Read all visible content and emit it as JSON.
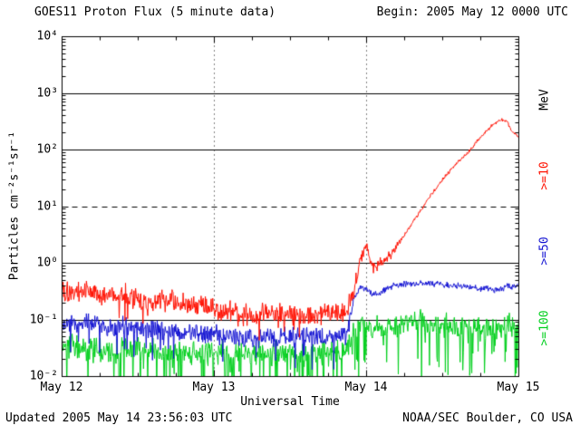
{
  "chart_data": {
    "type": "line",
    "title": "GOES11 Proton Flux (5 minute data)",
    "begin_label": "Begin: 2005 May 12 0000 UTC",
    "updated_label": "Updated 2005 May 14 23:56:03 UTC",
    "source_label": "NOAA/SEC Boulder, CO USA",
    "xlabel": "Universal Time",
    "ylabel": "Particles cm⁻²s⁻¹sr⁻¹",
    "right_axis_label": "MeV",
    "x_axis": {
      "range_hours": [
        0,
        72
      ],
      "tick_hours": [
        0,
        24,
        48,
        72
      ],
      "tick_labels": [
        "May 12",
        "May 13",
        "May 14",
        "May 15"
      ],
      "minor_tick_step_hours": 6
    },
    "y_axis": {
      "scale": "log",
      "ylim": [
        0.01,
        10000
      ],
      "tick_exponents": [
        -2,
        -1,
        0,
        1,
        2,
        3,
        4
      ],
      "tick_labels": [
        "10⁻²",
        "10⁻¹",
        "10⁰",
        "10¹",
        "10²",
        "10³",
        "10⁴"
      ]
    },
    "grid": {
      "solid_horizontal_exponents": [
        -1,
        0,
        2,
        3
      ],
      "dashed_horizontal_exponents": [
        1
      ],
      "dotted_vertical_hours": [
        24,
        48
      ]
    },
    "series": [
      {
        "name": "ge10",
        "label": ">=10",
        "units": "MeV",
        "color": "#ff1100",
        "points_time_hours_vs_flux": [
          [
            0,
            0.35
          ],
          [
            2,
            0.3
          ],
          [
            4,
            0.32
          ],
          [
            6,
            0.28
          ],
          [
            8,
            0.26
          ],
          [
            10,
            0.28
          ],
          [
            12,
            0.24
          ],
          [
            14,
            0.22
          ],
          [
            16,
            0.24
          ],
          [
            18,
            0.2
          ],
          [
            20,
            0.18
          ],
          [
            22,
            0.18
          ],
          [
            24,
            0.16
          ],
          [
            26,
            0.14
          ],
          [
            28,
            0.13
          ],
          [
            30,
            0.12
          ],
          [
            32,
            0.13
          ],
          [
            34,
            0.12
          ],
          [
            36,
            0.13
          ],
          [
            38,
            0.12
          ],
          [
            40,
            0.12
          ],
          [
            42,
            0.13
          ],
          [
            44,
            0.13
          ],
          [
            45,
            0.15
          ],
          [
            46,
            0.3
          ],
          [
            47,
            1.2
          ],
          [
            48,
            2.0
          ],
          [
            49,
            0.8
          ],
          [
            50,
            1.0
          ],
          [
            52,
            1.5
          ],
          [
            54,
            3.2
          ],
          [
            56,
            7.0
          ],
          [
            58,
            15
          ],
          [
            60,
            30
          ],
          [
            62,
            55
          ],
          [
            64,
            90
          ],
          [
            66,
            170
          ],
          [
            68,
            290
          ],
          [
            69,
            340
          ],
          [
            70,
            330
          ],
          [
            71,
            210
          ],
          [
            72,
            170
          ]
        ]
      },
      {
        "name": "ge50",
        "label": ">=50",
        "units": "MeV",
        "color": "#1414d2",
        "points_time_hours_vs_flux": [
          [
            0,
            0.09
          ],
          [
            2,
            0.08
          ],
          [
            4,
            0.09
          ],
          [
            6,
            0.08
          ],
          [
            8,
            0.07
          ],
          [
            10,
            0.08
          ],
          [
            12,
            0.07
          ],
          [
            14,
            0.065
          ],
          [
            16,
            0.07
          ],
          [
            18,
            0.06
          ],
          [
            20,
            0.06
          ],
          [
            22,
            0.06
          ],
          [
            24,
            0.055
          ],
          [
            26,
            0.05
          ],
          [
            28,
            0.05
          ],
          [
            30,
            0.05
          ],
          [
            32,
            0.05
          ],
          [
            34,
            0.05
          ],
          [
            36,
            0.05
          ],
          [
            38,
            0.05
          ],
          [
            40,
            0.05
          ],
          [
            42,
            0.05
          ],
          [
            44,
            0.05
          ],
          [
            45,
            0.06
          ],
          [
            46,
            0.25
          ],
          [
            47,
            0.38
          ],
          [
            48,
            0.36
          ],
          [
            49,
            0.28
          ],
          [
            50,
            0.3
          ],
          [
            52,
            0.4
          ],
          [
            54,
            0.42
          ],
          [
            56,
            0.45
          ],
          [
            58,
            0.45
          ],
          [
            60,
            0.42
          ],
          [
            62,
            0.4
          ],
          [
            64,
            0.38
          ],
          [
            66,
            0.36
          ],
          [
            68,
            0.34
          ],
          [
            70,
            0.38
          ],
          [
            72,
            0.42
          ]
        ]
      },
      {
        "name": "ge100",
        "label": ">=100",
        "units": "MeV",
        "color": "#00cf1d",
        "points_time_hours_vs_flux": [
          [
            0,
            0.035
          ],
          [
            4,
            0.03
          ],
          [
            8,
            0.028
          ],
          [
            12,
            0.03
          ],
          [
            16,
            0.027
          ],
          [
            20,
            0.028
          ],
          [
            24,
            0.026
          ],
          [
            28,
            0.025
          ],
          [
            32,
            0.027
          ],
          [
            36,
            0.025
          ],
          [
            40,
            0.026
          ],
          [
            44,
            0.026
          ],
          [
            45,
            0.03
          ],
          [
            46,
            0.06
          ],
          [
            47,
            0.08
          ],
          [
            48,
            0.08
          ],
          [
            50,
            0.07
          ],
          [
            52,
            0.08
          ],
          [
            54,
            0.09
          ],
          [
            56,
            0.09
          ],
          [
            58,
            0.085
          ],
          [
            60,
            0.08
          ],
          [
            62,
            0.08
          ],
          [
            64,
            0.075
          ],
          [
            66,
            0.07
          ],
          [
            68,
            0.07
          ],
          [
            70,
            0.08
          ],
          [
            72,
            0.08
          ]
        ]
      }
    ],
    "colors": {
      "axis": "#000000",
      "background": "#ffffff"
    }
  }
}
